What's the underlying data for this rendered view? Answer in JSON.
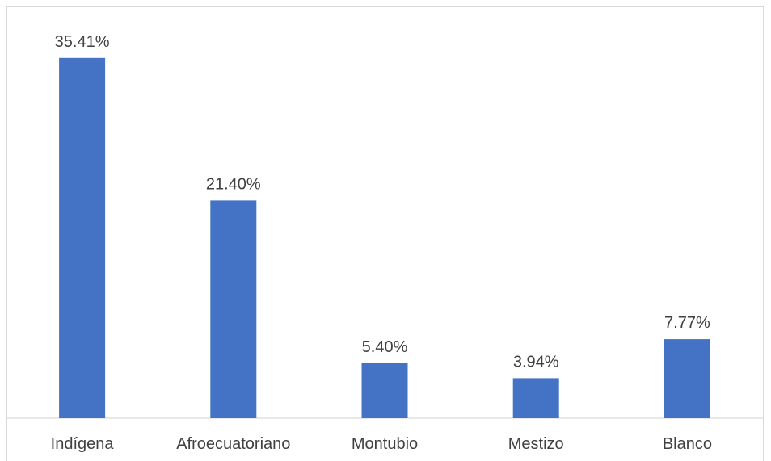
{
  "chart_data": {
    "type": "bar",
    "title": "",
    "xlabel": "",
    "ylabel": "",
    "categories": [
      "Indígena",
      "Afroecuatoriano",
      "Montubio",
      "Mestizo",
      "Blanco"
    ],
    "values": [
      35.41,
      21.4,
      5.4,
      3.94,
      7.77
    ],
    "data_labels": [
      "35.41%",
      "21.40%",
      "5.40%",
      "3.94%",
      "7.77%"
    ],
    "ylim": [
      0,
      40
    ],
    "grid": false,
    "legend": "none",
    "bar_color": "#4472c4"
  }
}
